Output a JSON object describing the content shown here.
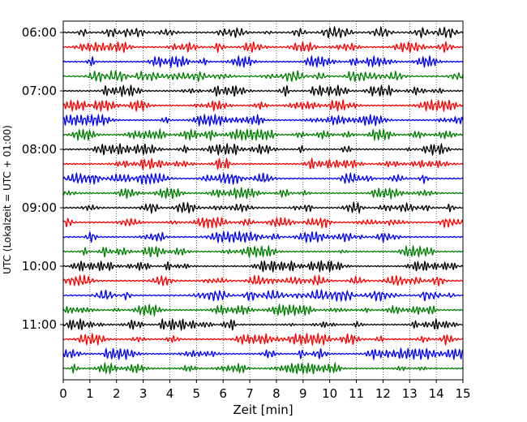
{
  "chart_data": {
    "type": "line",
    "title": "",
    "xlabel": "Zeit  [min]",
    "ylabel": "UTC (Lokalzeit = UTC + 01:00)",
    "xlim": [
      0,
      15
    ],
    "x_ticks": [
      0,
      1,
      2,
      3,
      4,
      5,
      6,
      7,
      8,
      9,
      10,
      11,
      12,
      13,
      14,
      15
    ],
    "x_tick_labels": [
      "0",
      "1",
      "2",
      "3",
      "4",
      "5",
      "6",
      "7",
      "8",
      "9",
      "10",
      "11",
      "12",
      "13",
      "14",
      "15"
    ],
    "y_tick_labels": [
      "06:00",
      "07:00",
      "08:00",
      "09:00",
      "10:00",
      "11:00"
    ],
    "y_tick_rows": [
      0,
      4,
      8,
      12,
      16,
      20
    ],
    "grid": "vertical-dotted",
    "trace_colors": [
      "#000000",
      "#ff0000",
      "#0000ff",
      "#008000"
    ],
    "rows": [
      {
        "start": "06:00",
        "color": "#000000"
      },
      {
        "start": "06:15",
        "color": "#ff0000"
      },
      {
        "start": "06:30",
        "color": "#0000ff"
      },
      {
        "start": "06:45",
        "color": "#008000"
      },
      {
        "start": "07:00",
        "color": "#000000"
      },
      {
        "start": "07:15",
        "color": "#ff0000"
      },
      {
        "start": "07:30",
        "color": "#0000ff"
      },
      {
        "start": "07:45",
        "color": "#008000"
      },
      {
        "start": "08:00",
        "color": "#000000"
      },
      {
        "start": "08:15",
        "color": "#ff0000"
      },
      {
        "start": "08:30",
        "color": "#0000ff"
      },
      {
        "start": "08:45",
        "color": "#008000"
      },
      {
        "start": "09:00",
        "color": "#000000"
      },
      {
        "start": "09:15",
        "color": "#ff0000"
      },
      {
        "start": "09:30",
        "color": "#0000ff"
      },
      {
        "start": "09:45",
        "color": "#008000"
      },
      {
        "start": "10:00",
        "color": "#000000"
      },
      {
        "start": "10:15",
        "color": "#ff0000"
      },
      {
        "start": "10:30",
        "color": "#0000ff"
      },
      {
        "start": "10:45",
        "color": "#008000"
      },
      {
        "start": "11:00",
        "color": "#000000"
      },
      {
        "start": "11:15",
        "color": "#ff0000"
      },
      {
        "start": "11:30",
        "color": "#0000ff"
      },
      {
        "start": "11:45",
        "color": "#008000"
      }
    ]
  }
}
